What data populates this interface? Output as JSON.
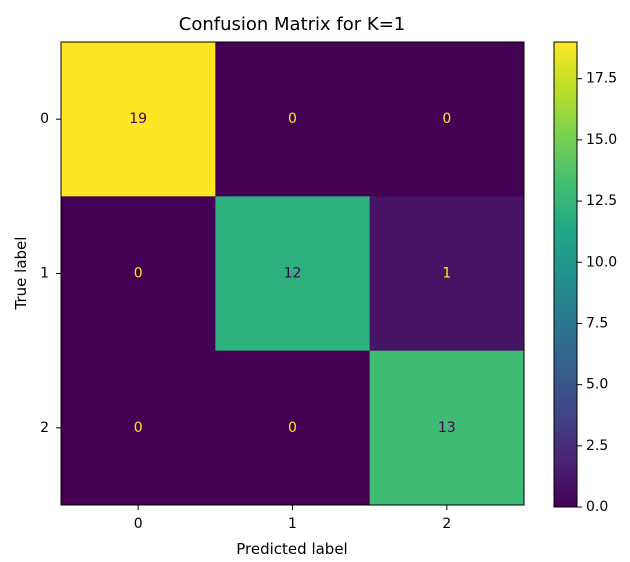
{
  "chart_data": {
    "type": "heatmap",
    "title": "Confusion Matrix for K=1",
    "xlabel": "Predicted label",
    "ylabel": "True label",
    "x_categories": [
      "0",
      "1",
      "2"
    ],
    "y_categories": [
      "0",
      "1",
      "2"
    ],
    "matrix": [
      [
        19,
        0,
        0
      ],
      [
        0,
        12,
        1
      ],
      [
        0,
        0,
        13
      ]
    ],
    "colormap": "viridis",
    "value_range": [
      0,
      19
    ],
    "colorbar": {
      "ticks": [
        0.0,
        2.5,
        5.0,
        7.5,
        10.0,
        12.5,
        15.0,
        17.5
      ],
      "tick_labels": [
        "0.0",
        "2.5",
        "5.0",
        "7.5",
        "10.0",
        "12.5",
        "15.0",
        "17.5"
      ]
    },
    "grid": false,
    "text_colors": {
      "on_dark": "#fde725",
      "on_light": "#440154"
    }
  }
}
